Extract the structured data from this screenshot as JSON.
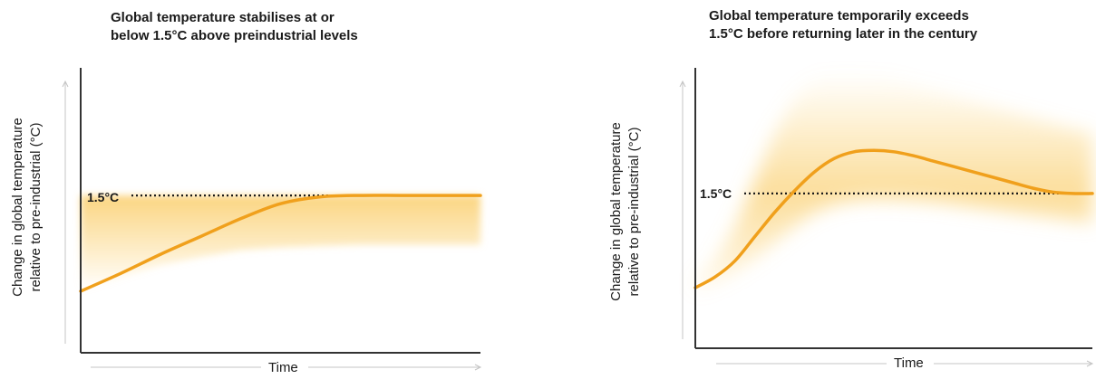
{
  "chart_data": [
    {
      "type": "line",
      "title": "Global temperature stabilises at or below 1.5°C above preindustrial levels",
      "title_lines": [
        "Global temperature stabilises at or",
        "below 1.5°C above preindustrial levels"
      ],
      "xlabel": "Time",
      "ylabel": "Change in global temperature relative to pre-industrial (°C)",
      "ylabel_lines": [
        "Change in global temperature",
        "relative to pre-industrial (°C)"
      ],
      "threshold": {
        "label": "1.5°C",
        "value": 1.5,
        "style": "dotted"
      },
      "ylim": [
        0.35,
        2.4
      ],
      "xlim": [
        0,
        100
      ],
      "grid": false,
      "series": [
        {
          "x": [
            0,
            10,
            20,
            30,
            40,
            50,
            60,
            70,
            80,
            90,
            100
          ],
          "y": [
            0.8,
            0.93,
            1.07,
            1.2,
            1.33,
            1.44,
            1.49,
            1.5,
            1.5,
            1.5,
            1.5
          ]
        }
      ],
      "band": {
        "upper": [
          1.5,
          1.5,
          1.5,
          1.5,
          1.5,
          1.5,
          1.5,
          1.5,
          1.5,
          1.5,
          1.5
        ],
        "lower": [
          0.8,
          0.9,
          0.99,
          1.05,
          1.1,
          1.12,
          1.13,
          1.14,
          1.14,
          1.14,
          1.14
        ]
      },
      "colors": {
        "line": "#f0a01c",
        "band": "#fbd37a",
        "threshold": "#1a1a1a",
        "axis": "#333333"
      }
    },
    {
      "type": "line",
      "title": "Global temperature temporarily exceeds 1.5°C before returning later in the century",
      "title_lines": [
        "Global temperature temporarily exceeds",
        "1.5°C before returning later in the century"
      ],
      "xlabel": "Time",
      "ylabel": "Change in global temperature relative to pre-industrial (°C)",
      "ylabel_lines": [
        "Change in global temperature",
        "relative to pre-industrial (°C)"
      ],
      "threshold": {
        "label": "1.5°C",
        "value": 1.5,
        "style": "dotted"
      },
      "ylim": [
        0.35,
        2.4
      ],
      "xlim": [
        0,
        100
      ],
      "grid": false,
      "series": [
        {
          "x": [
            0,
            5,
            10,
            15,
            20,
            25,
            30,
            35,
            40,
            45,
            50,
            55,
            60,
            65,
            70,
            75,
            80,
            85,
            90,
            95,
            100
          ],
          "y": [
            0.8,
            0.88,
            1.0,
            1.18,
            1.36,
            1.52,
            1.66,
            1.76,
            1.81,
            1.82,
            1.81,
            1.78,
            1.74,
            1.7,
            1.66,
            1.62,
            1.58,
            1.54,
            1.51,
            1.5,
            1.5
          ]
        }
      ],
      "band": {
        "upper": [
          0.85,
          1.0,
          1.25,
          1.6,
          1.95,
          2.2,
          2.35,
          2.4,
          2.4,
          2.38,
          2.35,
          2.3,
          2.26,
          2.22,
          2.18,
          2.14,
          2.1,
          2.06,
          2.02,
          1.98,
          1.95
        ],
        "lower": [
          0.78,
          0.84,
          0.92,
          1.02,
          1.14,
          1.26,
          1.36,
          1.42,
          1.45,
          1.46,
          1.46,
          1.45,
          1.44,
          1.42,
          1.4,
          1.38,
          1.36,
          1.34,
          1.32,
          1.3,
          1.28
        ]
      },
      "colors": {
        "line": "#f0a01c",
        "band": "#fbd37a",
        "threshold": "#1a1a1a",
        "axis": "#333333"
      }
    }
  ]
}
